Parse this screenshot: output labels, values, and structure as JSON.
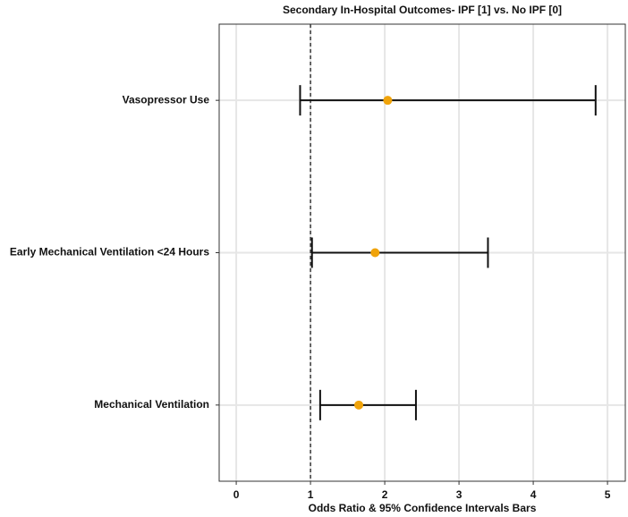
{
  "chart_data": {
    "type": "forest",
    "title": "Secondary In-Hospital Outcomes- IPF [1] vs. No IPF [0]",
    "x_label": "Odds Ratio & 95% Confidence Intervals Bars",
    "categories": [
      "Vasopressor Use",
      "Early Mechanical Ventilation <24 Hours",
      "Mechanical Ventilation"
    ],
    "values": [
      2.04,
      1.87,
      1.65
    ],
    "lower": [
      0.86,
      1.02,
      1.13
    ],
    "upper": [
      4.84,
      3.39,
      2.42
    ],
    "color": "#f0a30a",
    "reference_line": 1,
    "xlim": [
      -0.23,
      5.24
    ],
    "xticks": [
      0,
      1,
      2,
      3,
      4,
      5
    ],
    "grid": true
  }
}
